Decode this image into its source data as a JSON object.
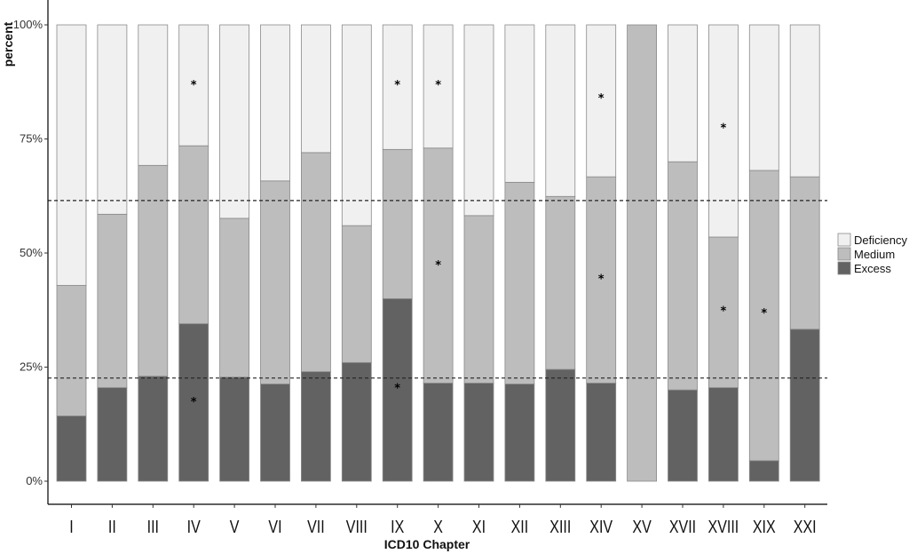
{
  "chart_data": {
    "type": "bar",
    "stacked": true,
    "xlabel": "ICD10 Chapter",
    "ylabel": "percent",
    "ylim": [
      0,
      100
    ],
    "yticks": [
      0,
      25,
      50,
      75,
      100
    ],
    "ytick_labels": [
      "0%",
      "25%",
      "50%",
      "75%",
      "100%"
    ],
    "categories": [
      "I",
      "II",
      "III",
      "IV",
      "V",
      "VI",
      "VII",
      "VIII",
      "IX",
      "X",
      "XI",
      "XII",
      "XIII",
      "XIV",
      "XV",
      "XVII",
      "XVIII",
      "XIX",
      "XXI"
    ],
    "series": [
      {
        "name": "Excess",
        "color": "#626262",
        "values": [
          14.3,
          20.5,
          23.0,
          34.5,
          22.8,
          21.3,
          24.0,
          26.0,
          40.0,
          21.5,
          21.5,
          21.3,
          24.5,
          21.5,
          0,
          20.0,
          20.5,
          4.5,
          33.3
        ]
      },
      {
        "name": "Medium",
        "color": "#bdbdbd",
        "values": [
          28.6,
          38.0,
          46.2,
          39.0,
          34.8,
          44.5,
          48.0,
          30.0,
          32.7,
          51.5,
          36.7,
          44.2,
          37.9,
          45.2,
          100,
          50.0,
          33.0,
          63.6,
          33.4
        ]
      },
      {
        "name": "Deficiency",
        "color": "#f0f0f0",
        "values": [
          57.1,
          41.5,
          30.8,
          26.5,
          42.4,
          34.2,
          28.0,
          44.0,
          27.3,
          27.0,
          41.8,
          34.5,
          37.6,
          33.3,
          0,
          30.0,
          46.5,
          31.9,
          33.3
        ]
      }
    ],
    "reference_lines": [
      22.6,
      61.5
    ],
    "significance_markers": [
      {
        "category": "IV",
        "y": 87,
        "label": "*"
      },
      {
        "category": "IV",
        "y": 17.5,
        "label": "*"
      },
      {
        "category": "IX",
        "y": 87,
        "label": "*"
      },
      {
        "category": "IX",
        "y": 20.5,
        "label": "*"
      },
      {
        "category": "X",
        "y": 87,
        "label": "*"
      },
      {
        "category": "X",
        "y": 47.5,
        "label": "*"
      },
      {
        "category": "XIV",
        "y": 84,
        "label": "*"
      },
      {
        "category": "XIV",
        "y": 44.5,
        "label": "*"
      },
      {
        "category": "XVIII",
        "y": 77.5,
        "label": "*"
      },
      {
        "category": "XVIII",
        "y": 37.5,
        "label": "*"
      },
      {
        "category": "XIX",
        "y": 37,
        "label": "*"
      }
    ],
    "legend": {
      "position": "right",
      "items": [
        "Deficiency",
        "Medium",
        "Excess"
      ],
      "colors": [
        "#f0f0f0",
        "#bdbdbd",
        "#626262"
      ]
    },
    "grid": false
  }
}
